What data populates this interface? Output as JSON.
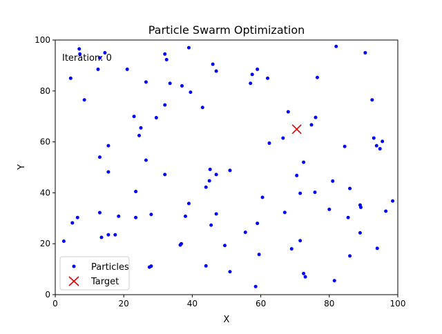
{
  "chart_data": {
    "type": "scatter",
    "title": "Particle Swarm Optimization",
    "xlabel": "X",
    "ylabel": "Y",
    "xlim": [
      0,
      100
    ],
    "ylim": [
      0,
      100
    ],
    "xticks": [
      0,
      20,
      40,
      60,
      80,
      100
    ],
    "yticks": [
      0,
      20,
      40,
      60,
      80,
      100
    ],
    "grid": false,
    "legend_position": "lower-left",
    "annotation": "Iteration: 0",
    "series": [
      {
        "name": "Particles",
        "marker": "dot",
        "color": "#0000ff",
        "points": [
          [
            7,
            96.5
          ],
          [
            7.2,
            94.5
          ],
          [
            14.5,
            95
          ],
          [
            13,
            93
          ],
          [
            4.5,
            85
          ],
          [
            8.5,
            76.5
          ],
          [
            12.5,
            88.5
          ],
          [
            21,
            88.5
          ],
          [
            32,
            94.5
          ],
          [
            32.5,
            92.3
          ],
          [
            39,
            97
          ],
          [
            26.5,
            83.5
          ],
          [
            33.5,
            83
          ],
          [
            37,
            82
          ],
          [
            39.5,
            79.5
          ],
          [
            46,
            90.5
          ],
          [
            47,
            87.8
          ],
          [
            43,
            73.5
          ],
          [
            32,
            74.5
          ],
          [
            23,
            70
          ],
          [
            29.5,
            69.5
          ],
          [
            25,
            65.5
          ],
          [
            24.5,
            62.5
          ],
          [
            15.5,
            58.5
          ],
          [
            13,
            54
          ],
          [
            26.5,
            52.8
          ],
          [
            15.5,
            48.2
          ],
          [
            32,
            47.2
          ],
          [
            23.5,
            40.5
          ],
          [
            39,
            35.8
          ],
          [
            28,
            31.5
          ],
          [
            23.5,
            30.3
          ],
          [
            18.5,
            30.8
          ],
          [
            13,
            32.2
          ],
          [
            6.5,
            30.3
          ],
          [
            5,
            28.2
          ],
          [
            2.5,
            21
          ],
          [
            13.5,
            22.5
          ],
          [
            15.5,
            23.5
          ],
          [
            17.5,
            23.5
          ],
          [
            27.5,
            10.8
          ],
          [
            28,
            11.2
          ],
          [
            36.5,
            19.5
          ],
          [
            36.8,
            20
          ],
          [
            38,
            30.8
          ],
          [
            44,
            42.2
          ],
          [
            45,
            44.7
          ],
          [
            45.2,
            49.2
          ],
          [
            47,
            47.2
          ],
          [
            51,
            48.8
          ],
          [
            47,
            31.7
          ],
          [
            45.5,
            27.3
          ],
          [
            44,
            11.3
          ],
          [
            49.5,
            19.3
          ],
          [
            51,
            9
          ],
          [
            55.5,
            24.5
          ],
          [
            59,
            28
          ],
          [
            59.5,
            15.8
          ],
          [
            58.5,
            3.2
          ],
          [
            60.5,
            38.2
          ],
          [
            57,
            83
          ],
          [
            57.5,
            86.5
          ],
          [
            59,
            88.5
          ],
          [
            62,
            85
          ],
          [
            62.5,
            59.5
          ],
          [
            66.5,
            61.5
          ],
          [
            68,
            71.8
          ],
          [
            70.5,
            46.8
          ],
          [
            71.5,
            39.8
          ],
          [
            72.5,
            52
          ],
          [
            67,
            32.3
          ],
          [
            69,
            18
          ],
          [
            71.5,
            21.2
          ],
          [
            72.5,
            8.3
          ],
          [
            73,
            7
          ],
          [
            74.8,
            66.7
          ],
          [
            76,
            69.6
          ],
          [
            76.5,
            85.3
          ],
          [
            75.8,
            40.2
          ],
          [
            81,
            44.6
          ],
          [
            80,
            33.5
          ],
          [
            82,
            97.5
          ],
          [
            84.5,
            58.2
          ],
          [
            86,
            41.7
          ],
          [
            85.5,
            30.3
          ],
          [
            86,
            15.2
          ],
          [
            89,
            35.2
          ],
          [
            89.2,
            34.3
          ],
          [
            89,
            24.3
          ],
          [
            81.5,
            5.5
          ],
          [
            90.5,
            95
          ],
          [
            92.5,
            76.5
          ],
          [
            93,
            61.5
          ],
          [
            93.8,
            58.5
          ],
          [
            94.8,
            57.3
          ],
          [
            95.5,
            60.2
          ],
          [
            96.5,
            32.8
          ],
          [
            94,
            18.2
          ],
          [
            98.5,
            36.8
          ]
        ]
      },
      {
        "name": "Target",
        "marker": "x",
        "color": "#dd0000",
        "points": [
          [
            70.5,
            65
          ]
        ]
      }
    ]
  }
}
